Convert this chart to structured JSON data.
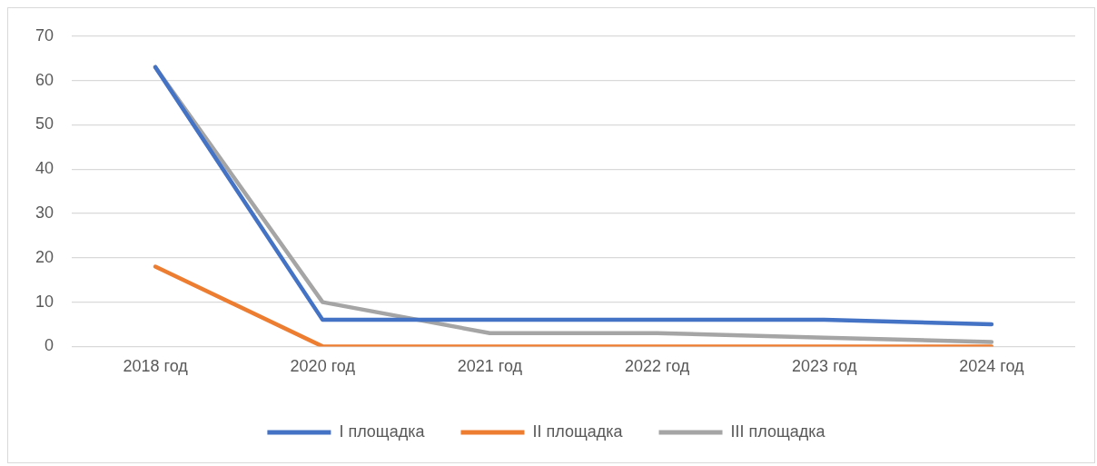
{
  "chart_data": {
    "type": "line",
    "categories": [
      "2018 год",
      "2020 год",
      "2021 год",
      "2022 год",
      "2023 год",
      "2024 год"
    ],
    "series": [
      {
        "name": "I площадка",
        "color": "#4472c4",
        "values": [
          63,
          6,
          6,
          6,
          6,
          5
        ]
      },
      {
        "name": "II площадка",
        "color": "#ed7d31",
        "values": [
          18,
          0,
          0,
          0,
          0,
          0
        ]
      },
      {
        "name": "III площадка",
        "color": "#a5a5a5",
        "values": [
          63,
          10,
          3,
          3,
          2,
          1
        ]
      }
    ],
    "ylim": [
      0,
      70
    ],
    "yticks": [
      0,
      10,
      20,
      30,
      40,
      50,
      60,
      70
    ],
    "grid": "y",
    "legend": "bottom",
    "marker": "none",
    "line_style": "solid"
  }
}
